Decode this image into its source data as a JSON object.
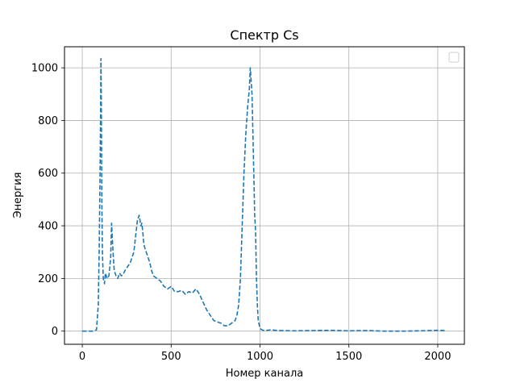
{
  "chart_data": {
    "type": "line",
    "title": "Спектр Cs",
    "xlabel": "Номер канала",
    "ylabel": "Энергия",
    "xlim": [
      -100,
      2150
    ],
    "ylim": [
      -50,
      1080
    ],
    "xticks": [
      0,
      500,
      1000,
      1500,
      2000
    ],
    "yticks": [
      0,
      200,
      400,
      600,
      800,
      1000
    ],
    "grid": true,
    "legend": {
      "position": "top-right",
      "entries": []
    },
    "series": [
      {
        "style": "dashed",
        "color": "#1f77b4",
        "x": [
          0,
          60,
          80,
          90,
          95,
          100,
          103,
          105,
          107,
          110,
          113,
          118,
          125,
          130,
          140,
          150,
          160,
          165,
          170,
          175,
          180,
          190,
          200,
          210,
          220,
          230,
          240,
          250,
          260,
          270,
          280,
          290,
          300,
          310,
          320,
          330,
          335,
          340,
          345,
          350,
          360,
          370,
          380,
          390,
          400,
          420,
          440,
          460,
          480,
          500,
          520,
          540,
          560,
          580,
          600,
          620,
          640,
          660,
          680,
          700,
          720,
          740,
          760,
          780,
          800,
          820,
          840,
          860,
          870,
          880,
          890,
          900,
          910,
          920,
          930,
          940,
          945,
          950,
          955,
          960,
          965,
          970,
          975,
          980,
          985,
          990,
          1000,
          1010,
          1020,
          1030,
          1040,
          1050,
          1060,
          1100,
          1200,
          1300,
          1400,
          1500,
          1600,
          1700,
          1800,
          1900,
          2000,
          2040
        ],
        "y": [
          0,
          0,
          5,
          100,
          300,
          600,
          850,
          1035,
          900,
          500,
          300,
          200,
          180,
          220,
          200,
          210,
          280,
          410,
          340,
          280,
          230,
          210,
          200,
          220,
          210,
          215,
          230,
          240,
          250,
          260,
          280,
          300,
          360,
          420,
          440,
          400,
          410,
          380,
          340,
          320,
          300,
          280,
          260,
          230,
          210,
          200,
          190,
          170,
          160,
          170,
          150,
          150,
          155,
          140,
          150,
          145,
          160,
          140,
          110,
          80,
          60,
          40,
          35,
          30,
          20,
          20,
          30,
          40,
          60,
          100,
          200,
          400,
          600,
          750,
          850,
          920,
          1000,
          950,
          900,
          750,
          600,
          440,
          380,
          200,
          100,
          40,
          10,
          5,
          3,
          2,
          3,
          4,
          5,
          2,
          1,
          2,
          3,
          1,
          2,
          0,
          0,
          1,
          3,
          2
        ]
      }
    ]
  }
}
